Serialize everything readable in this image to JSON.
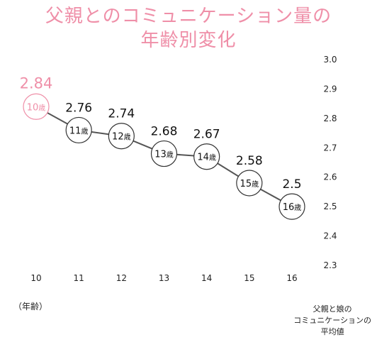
{
  "title": {
    "line1": "父親とのコミュニケーション量の",
    "line2": "年齢別変化"
  },
  "x_axis_unit": "（年齢）",
  "y_axis_label": [
    "父親と娘の",
    "コミュニケーションの",
    "平均値"
  ],
  "age_suffix": "歳",
  "colors": {
    "accent": "#ef8fa8",
    "line": "#555555",
    "text": "#111111",
    "highlight_circle_stroke": "#ef8fa8"
  },
  "chart_data": {
    "type": "line",
    "x": [
      10,
      11,
      12,
      13,
      14,
      15,
      16
    ],
    "y": [
      2.84,
      2.76,
      2.74,
      2.68,
      2.67,
      2.58,
      2.5
    ],
    "value_labels": [
      "2.84",
      "2.76",
      "2.74",
      "2.68",
      "2.67",
      "2.58",
      "2.5"
    ],
    "highlight_index": 0,
    "x_ticks": [
      "10",
      "11",
      "12",
      "13",
      "14",
      "15",
      "16"
    ],
    "y_ticks": [
      "2.3",
      "2.4",
      "2.5",
      "2.6",
      "2.7",
      "2.8",
      "2.9",
      "3.0"
    ],
    "ylim": [
      2.3,
      3.0
    ],
    "xlim": [
      10,
      16
    ],
    "grid": false
  }
}
